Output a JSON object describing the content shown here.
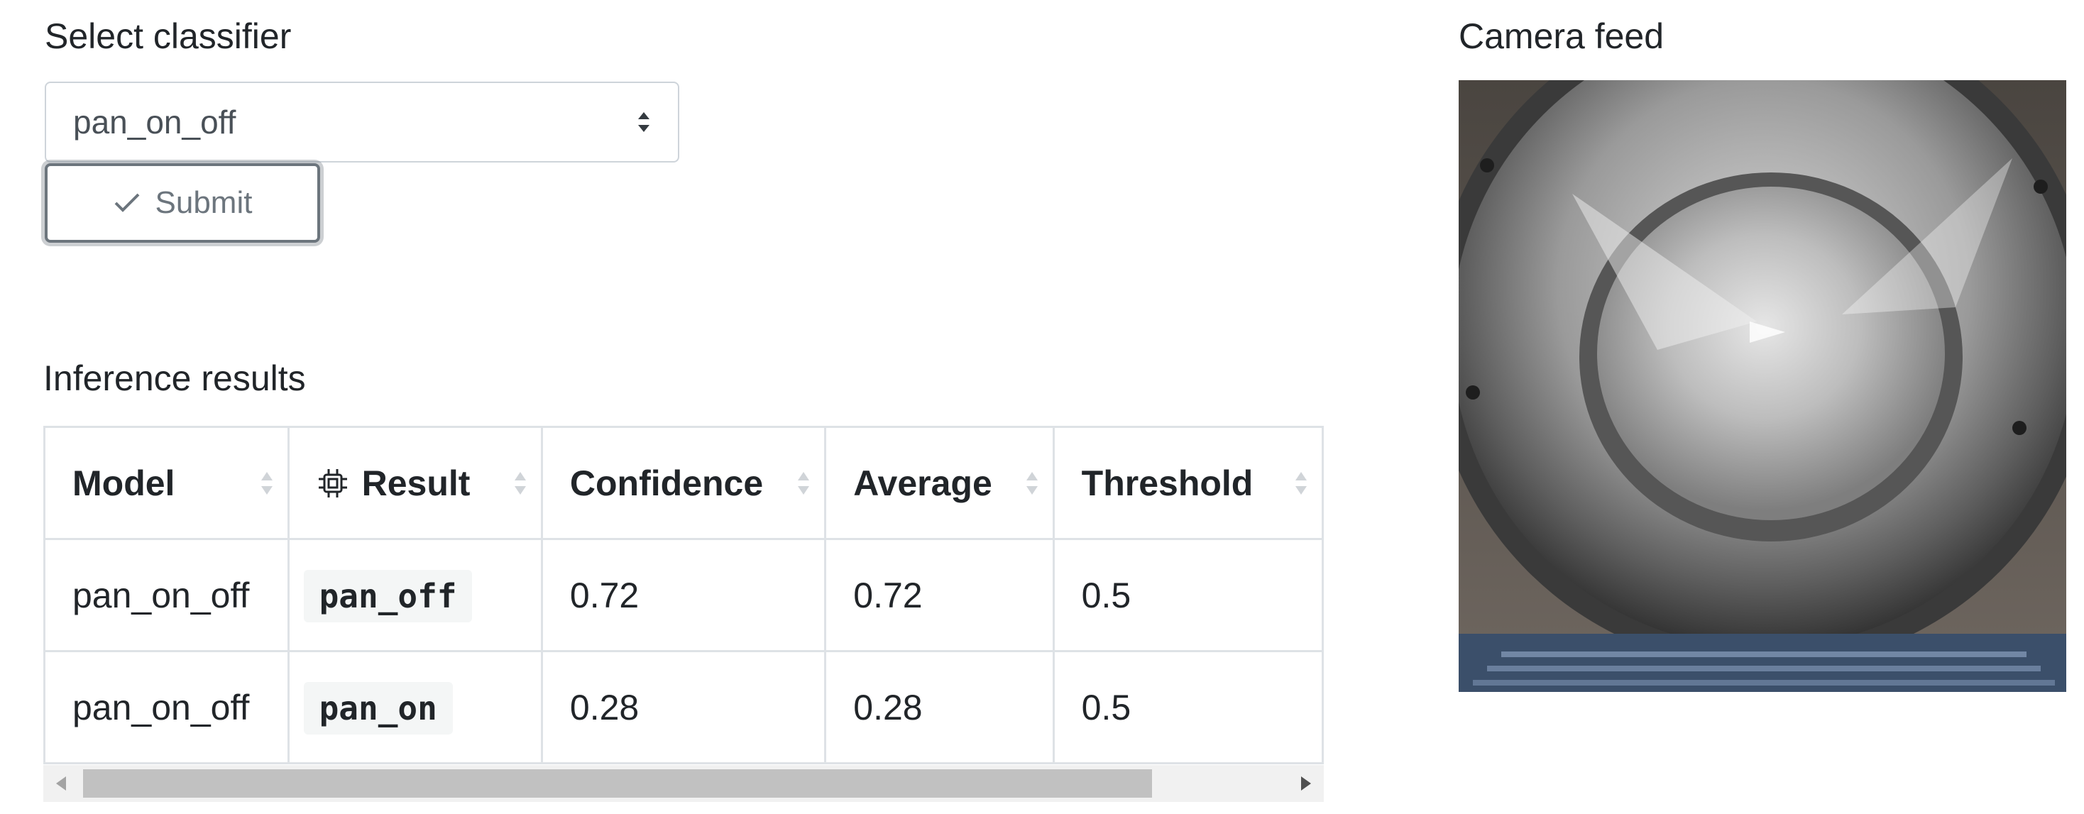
{
  "classifier": {
    "label": "Select classifier",
    "selected": "pan_on_off",
    "submit_label": "Submit"
  },
  "camera": {
    "label": "Camera feed"
  },
  "results": {
    "label": "Inference results",
    "columns": [
      "Model",
      "Result",
      "Confidence",
      "Average",
      "Threshold"
    ],
    "rows": [
      {
        "model": "pan_on_off",
        "result": "pan_off",
        "confidence": "0.72",
        "average": "0.72",
        "threshold": "0.5"
      },
      {
        "model": "pan_on_off",
        "result": "pan_on",
        "confidence": "0.28",
        "average": "0.28",
        "threshold": "0.5"
      }
    ]
  },
  "icons": {
    "submit": "check-icon",
    "result_column": "chip-icon",
    "select": "sort-arrows-icon"
  }
}
